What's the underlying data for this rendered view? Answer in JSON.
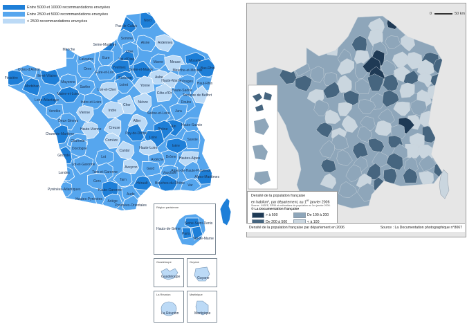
{
  "left_legend": {
    "items": [
      {
        "label": "Entre 5000 et 10000 recommandations envoyées",
        "color": "#1e7fd8"
      },
      {
        "label": "Entre 2500 et 5000 recommandations envoyées",
        "color": "#56a6ee"
      },
      {
        "label": "< 2500 recommandations envoyées",
        "color": "#bcdaf6"
      }
    ]
  },
  "palette": {
    "dark": "#1e7fd8",
    "mid": "#56a6ee",
    "light": "#bcdaf6",
    "border": "#ffffff",
    "r_dark": "#1f3a55",
    "r_mid": "#46657f",
    "r_light": "#8ea6ba",
    "r_pale": "#cad6df"
  },
  "departments": [
    "Pas-de-Calais",
    "Nord",
    "Somme",
    "Aisne",
    "Ardennes",
    "Manche",
    "Seine-Maritime",
    "Oise",
    "Val-d'Oise",
    "Marne",
    "Meuse",
    "Moselle",
    "Bas-Rhin",
    "Calvados",
    "Eure",
    "Seine-et-Marne",
    "Meurthe-et-Moselle",
    "Côtes-d'Armor",
    "Ille-et-Vilaine",
    "Orne",
    "Eure-et-Loir",
    "Yvelines",
    "Aube",
    "Haute-Marne",
    "Vosges",
    "Haut-Rhin",
    "Finistère",
    "Mayenne",
    "Essonne",
    "Loiret",
    "Yonne",
    "Haute-Saône",
    "Territoire de Belfort",
    "Morbihan",
    "Sarthe",
    "Loir-et-Cher",
    "Côte-d'Or",
    "Doubs",
    "Loire-Atlantique",
    "Maine-et-Loire",
    "Indre-et-Loire",
    "Cher",
    "Nièvre",
    "Jura",
    "Vendée",
    "Vienne",
    "Indre",
    "Saône-et-Loire",
    "Deux-Sèvres",
    "Haute-Vienne",
    "Allier",
    "Ain",
    "Haute-Savoie",
    "Charente-Maritime",
    "Charente",
    "Creuse",
    "Puy-de-Dôme",
    "Rhône",
    "Savoie",
    "Dordogne",
    "Corrèze",
    "Loire",
    "Isère",
    "Haute-Loire",
    "Drôme",
    "Hautes-Alpes",
    "Gironde",
    "Lot",
    "Cantal",
    "Ardèche",
    "Lot-et-Garonne",
    "Tarn-et-Garonne",
    "Aveyron",
    "Gard",
    "Vaucluse",
    "Alpes-de-Haute-Provence",
    "Alpes-Maritimes",
    "Landes",
    "Gers",
    "Tarn",
    "Hérault",
    "Bouches-du-Rhône",
    "Var",
    "Pyrénées-Atlantiques",
    "Haute-Garonne",
    "Aude",
    "Hautes-Pyrénées",
    "Ariège",
    "Pyrénées-Orientales",
    "Corse"
  ],
  "insets": {
    "idf_title": "Région parisienne",
    "idf_labels": [
      "Seine-Saint-Denis",
      "Hauts-de-Seine",
      "Paris",
      "Val-de-Marne"
    ],
    "guadeloupe_title": "Guadeloupe",
    "guadeloupe": "Guadeloupe",
    "guyane_title": "Guyane",
    "guyane": "Guyane",
    "reunion_title": "La Réunion",
    "reunion": "La Réunion",
    "martinique_title": "Martinique",
    "martinique": "Martinique"
  },
  "right_map": {
    "scale_zero": "0",
    "scale_max": "50 km",
    "legend_title": "Densité de la population française",
    "legend_sub1": "en hab/km², par département, au 1",
    "legend_sub1_sup": "er",
    "legend_sub1_end": " janvier 2006",
    "legend_source_small": "Source : INSEE, RP99 et estimations de population au 1er janvier 2006.",
    "legend_brand": "© La Documentation française",
    "classes": [
      {
        "label": "> à 500",
        "color": "#1f3a55"
      },
      {
        "label": "De 100 à 200",
        "color": "#8ea6ba"
      },
      {
        "label": "De 200 à 500",
        "color": "#46657f"
      },
      {
        "label": "< à 100",
        "color": "#cad6df"
      }
    ],
    "caption_left": "Densité de la population française par département en 2006",
    "caption_right": "Source : La Documentation photographique n°8067"
  }
}
